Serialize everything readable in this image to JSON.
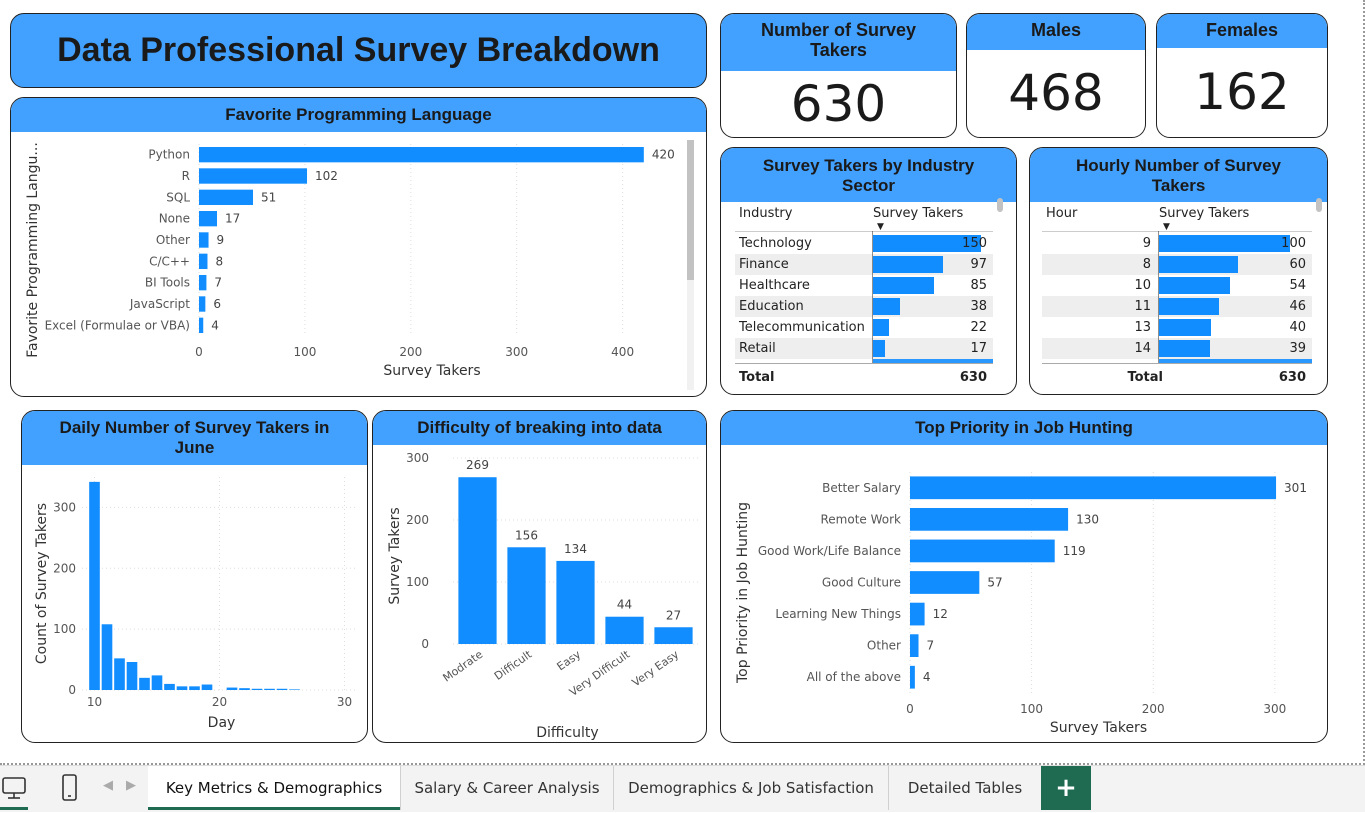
{
  "title": "Data Professional Survey Breakdown",
  "kpis": {
    "total": {
      "label": "Number of Survey Takers",
      "value": "630"
    },
    "males": {
      "label": "Males",
      "value": "468"
    },
    "females": {
      "label": "Females",
      "value": "162"
    }
  },
  "colors": {
    "accent": "#42a1ff",
    "bar": "#118dff",
    "tab_active": "#1e6b52"
  },
  "chart_data": [
    {
      "id": "lang",
      "type": "bar",
      "orientation": "horizontal",
      "title": "Favorite Programming Language",
      "xlabel": "Survey Takers",
      "ylabel": "Favorite Programming Langu...",
      "categories": [
        "Python",
        "R",
        "SQL",
        "None",
        "Other",
        "C/C++",
        "BI Tools",
        "JavaScript",
        "Excel (Formulae or VBA)"
      ],
      "values": [
        420,
        102,
        51,
        17,
        9,
        8,
        7,
        6,
        4
      ],
      "xticks": [
        0,
        100,
        200,
        300,
        400
      ],
      "xlim": [
        0,
        440
      ],
      "grid": true
    },
    {
      "id": "daily",
      "type": "bar",
      "title": "Daily Number of Survey Takers in June",
      "xlabel": "Day",
      "ylabel": "Count of Survey Takers",
      "x": [
        10,
        11,
        12,
        13,
        14,
        15,
        16,
        17,
        18,
        19,
        20,
        21,
        22,
        23,
        24,
        25,
        26
      ],
      "values": [
        342,
        108,
        52,
        46,
        20,
        24,
        10,
        6,
        6,
        9,
        0,
        4,
        3,
        2,
        2,
        2,
        1
      ],
      "xticks": [
        10,
        20,
        30
      ],
      "yticks": [
        0,
        100,
        200,
        300
      ],
      "xlim": [
        9,
        31
      ],
      "ylim": [
        0,
        350
      ],
      "grid": true
    },
    {
      "id": "difficulty",
      "type": "bar",
      "title": "Difficulty of breaking into data",
      "xlabel": "Difficulty",
      "ylabel": "Survey Takers",
      "categories": [
        "Modrate",
        "Difficult",
        "Easy",
        "Very Difficult",
        "Very Easy"
      ],
      "values": [
        269,
        156,
        134,
        44,
        27
      ],
      "yticks": [
        0,
        100,
        200,
        300
      ],
      "ylim": [
        0,
        300
      ],
      "grid": true
    },
    {
      "id": "priority",
      "type": "bar",
      "orientation": "horizontal",
      "title": "Top Priority in Job Hunting",
      "xlabel": "Survey Takers",
      "ylabel": "Top Priority in Job Hunting",
      "categories": [
        "Better Salary",
        "Remote Work",
        "Good Work/Life Balance",
        "Good Culture",
        "Learning New Things",
        "Other",
        "All of the above"
      ],
      "values": [
        301,
        130,
        119,
        57,
        12,
        7,
        4
      ],
      "xticks": [
        0,
        100,
        200,
        300
      ],
      "xlim": [
        0,
        310
      ],
      "grid": true
    },
    {
      "id": "industry",
      "type": "table",
      "title": "Survey Takers by Industry Sector",
      "columns": [
        "Industry",
        "Survey Takers"
      ],
      "rows": [
        {
          "name": "Technology",
          "value": 150
        },
        {
          "name": "Finance",
          "value": 97
        },
        {
          "name": "Healthcare",
          "value": 85
        },
        {
          "name": "Education",
          "value": 38
        },
        {
          "name": "Telecommunication",
          "value": 22
        },
        {
          "name": "Retail",
          "value": 17
        }
      ],
      "total_label": "Total",
      "total_value": "630",
      "max": 150
    },
    {
      "id": "hourly",
      "type": "table",
      "title": "Hourly Number of Survey Takers",
      "columns": [
        "Hour",
        "Survey Takers"
      ],
      "rows": [
        {
          "name": "9",
          "value": 100
        },
        {
          "name": "8",
          "value": 60
        },
        {
          "name": "10",
          "value": 54
        },
        {
          "name": "11",
          "value": 46
        },
        {
          "name": "13",
          "value": 40
        },
        {
          "name": "14",
          "value": 39
        }
      ],
      "total_label": "Total",
      "total_value": "630",
      "max": 100
    }
  ],
  "tabs": [
    {
      "label": "Key Metrics & Demographics",
      "active": true
    },
    {
      "label": "Salary & Career Analysis",
      "active": false
    },
    {
      "label": "Demographics & Job Satisfaction",
      "active": false
    },
    {
      "label": "Detailed Tables",
      "active": false
    }
  ],
  "icons": {
    "desktop": "desktop-icon",
    "mobile": "mobile-icon",
    "prev": "chevron-left-icon",
    "next": "chevron-right-icon",
    "add": "plus-icon"
  }
}
